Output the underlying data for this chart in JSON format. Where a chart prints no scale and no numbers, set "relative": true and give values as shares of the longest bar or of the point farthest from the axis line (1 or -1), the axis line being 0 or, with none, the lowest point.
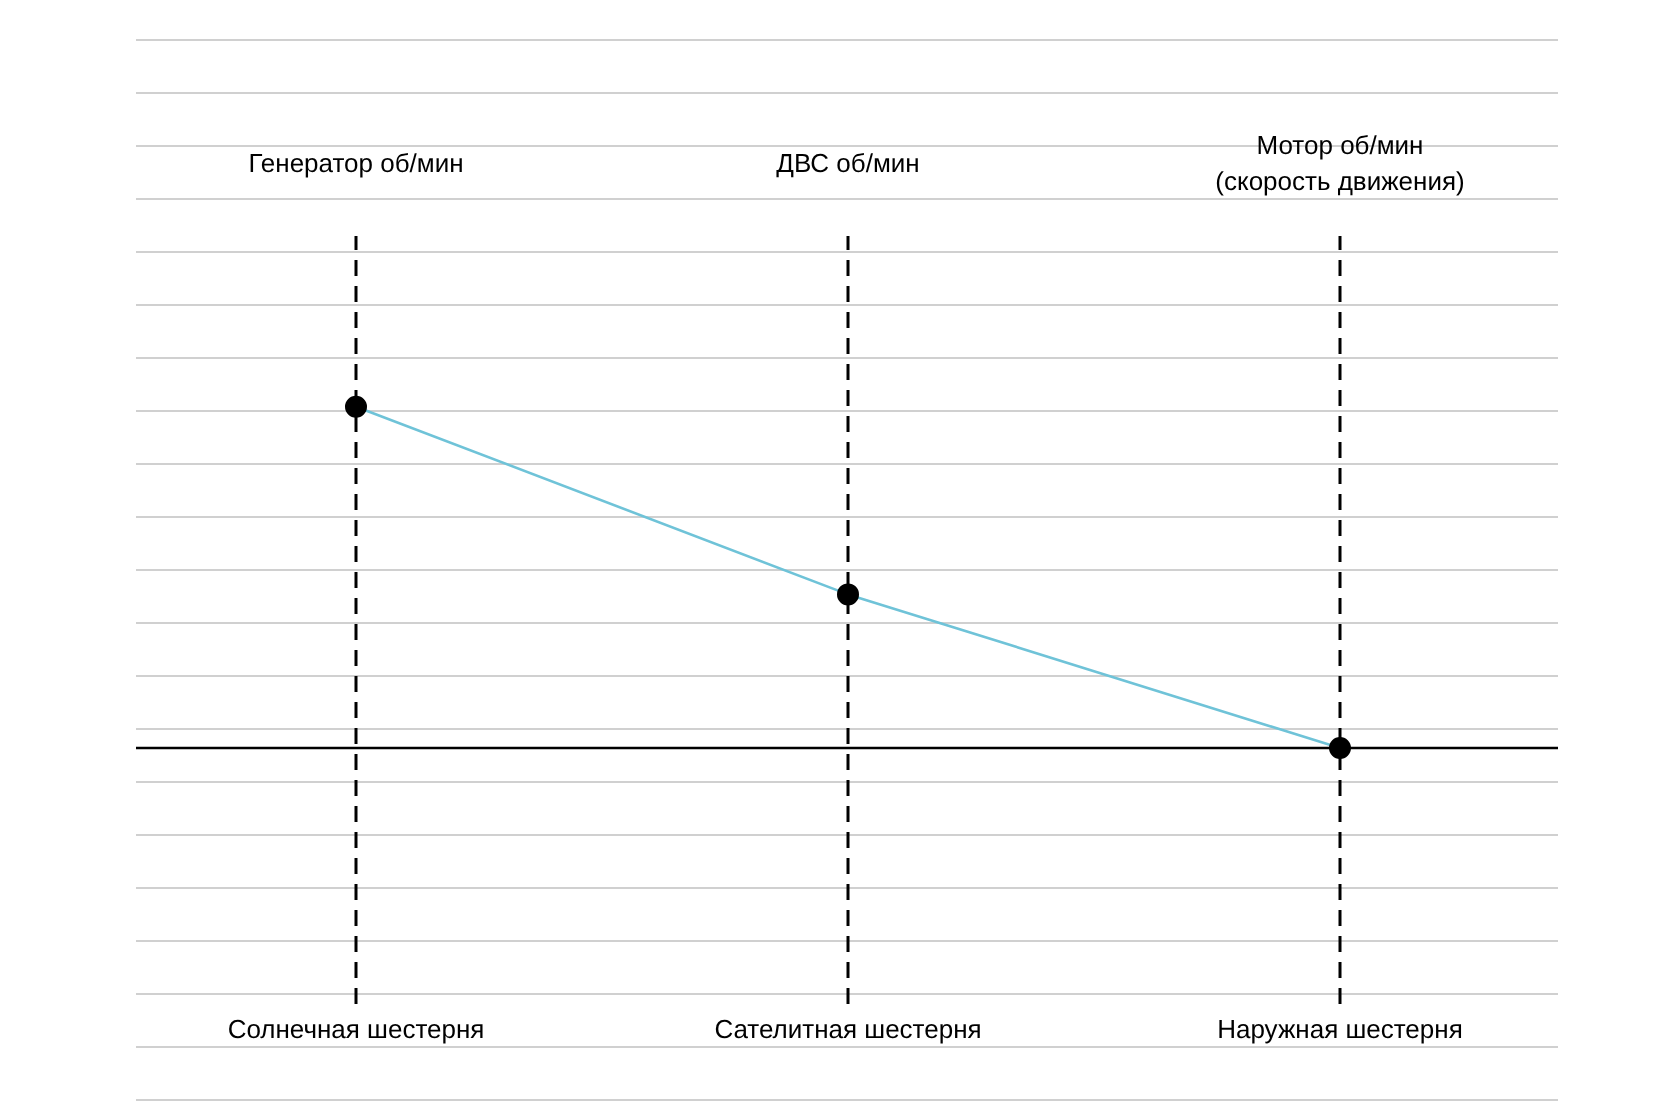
{
  "chart_data": {
    "type": "line",
    "relative": true,
    "categories": [
      "Солнечная шестерня",
      "Сателитная шестерня",
      "Наружная шестерня"
    ],
    "series": [
      {
        "color": "#6fc3d8",
        "values": [
          1,
          0.45,
          0
        ]
      }
    ],
    "marker": "circle",
    "grid": "y",
    "legend": false,
    "tick_labels": "x",
    "ref_lines": [
      {
        "axis": "x",
        "value": "Солнечная шестерня",
        "label": "Генератор об/мин",
        "line_style": "dashed",
        "color": "#000000"
      },
      {
        "axis": "x",
        "value": "Сателитная шестерня",
        "label": "ДВС об/мин",
        "line_style": "dashed",
        "color": "#000000"
      },
      {
        "axis": "x",
        "value": "Наружная шестерня",
        "label": "Мотор об/мин\n(скорость движения)",
        "line_style": "dashed",
        "color": "#000000"
      }
    ]
  }
}
